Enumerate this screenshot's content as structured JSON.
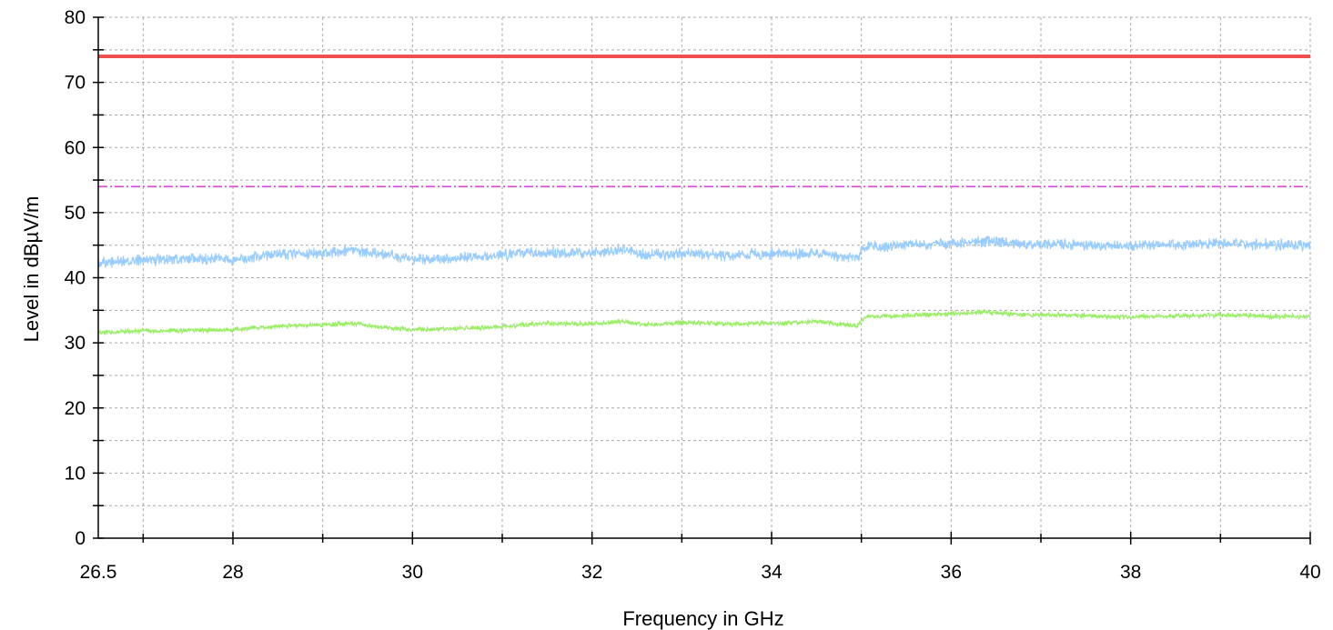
{
  "chart_data": {
    "type": "line",
    "xlabel": "Frequency in GHz",
    "ylabel": "Level in dBµV/m",
    "xlim": [
      26.5,
      40
    ],
    "ylim": [
      0,
      80
    ],
    "x_ticks": [
      26.5,
      28,
      30,
      32,
      34,
      36,
      38,
      40
    ],
    "x_tick_labels": [
      "26.5",
      "28",
      "30",
      "32",
      "34",
      "36",
      "38",
      "40"
    ],
    "y_ticks": [
      0,
      10,
      20,
      30,
      40,
      50,
      60,
      70,
      80
    ],
    "y_tick_labels": [
      "0",
      "10",
      "20",
      "30",
      "40",
      "50",
      "60",
      "70",
      "80"
    ],
    "grid": true,
    "series": [
      {
        "color": "#f05050",
        "style": "solid-thick",
        "x": [
          26.5,
          40
        ],
        "y": [
          74,
          74
        ]
      },
      {
        "color": "#d94ee0",
        "style": "dash-dot",
        "x": [
          26.5,
          40
        ],
        "y": [
          54,
          54
        ]
      },
      {
        "color": "#99ccff",
        "style": "noisy",
        "noise_amplitude": 1.0,
        "x": [
          26.5,
          27,
          27.5,
          28,
          28.5,
          29,
          29.3,
          29.6,
          30,
          30.5,
          31,
          31.5,
          32,
          32.3,
          32.6,
          33,
          33.5,
          34,
          34.5,
          34.95,
          35.05,
          35.5,
          36,
          36.4,
          36.8,
          37.2,
          37.6,
          38,
          38.5,
          39,
          39.5,
          40
        ],
        "y": [
          42.3,
          42.7,
          43.0,
          42.8,
          43.6,
          43.8,
          44.2,
          43.7,
          42.9,
          43.0,
          43.5,
          43.9,
          43.7,
          44.3,
          43.6,
          43.8,
          43.5,
          43.7,
          43.8,
          43.0,
          44.8,
          45.0,
          45.3,
          45.6,
          45.1,
          45.2,
          45.0,
          44.9,
          45.0,
          45.3,
          45.1,
          44.9
        ]
      },
      {
        "color": "#99ee66",
        "style": "noisy",
        "noise_amplitude": 0.4,
        "x": [
          26.5,
          27,
          27.5,
          28,
          28.5,
          29,
          29.3,
          29.6,
          30,
          30.5,
          31,
          31.5,
          32,
          32.3,
          32.6,
          33,
          33.5,
          34,
          34.5,
          34.95,
          35.05,
          35.5,
          36,
          36.4,
          36.8,
          37.2,
          37.6,
          38,
          38.5,
          39,
          39.5,
          40
        ],
        "y": [
          31.6,
          31.8,
          31.9,
          32.0,
          32.6,
          32.8,
          33.0,
          32.5,
          32.0,
          32.2,
          32.5,
          33.0,
          32.9,
          33.3,
          32.8,
          33.1,
          32.9,
          33.0,
          33.3,
          32.6,
          34.0,
          34.2,
          34.5,
          34.7,
          34.3,
          34.3,
          34.1,
          34.0,
          34.1,
          34.3,
          34.1,
          34.0
        ]
      }
    ]
  }
}
